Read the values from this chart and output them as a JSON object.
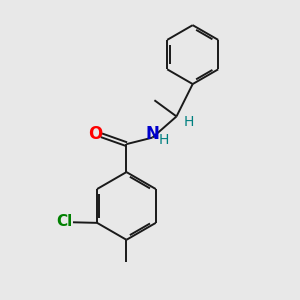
{
  "bg_color": "#e8e8e8",
  "bond_color": "#1a1a1a",
  "O_color": "#ff0000",
  "N_color": "#0000cc",
  "H_color": "#008080",
  "Cl_color": "#008000",
  "line_width": 1.4,
  "figsize": [
    3.0,
    3.0
  ],
  "dpi": 100,
  "xlim": [
    0,
    10
  ],
  "ylim": [
    0,
    10
  ]
}
